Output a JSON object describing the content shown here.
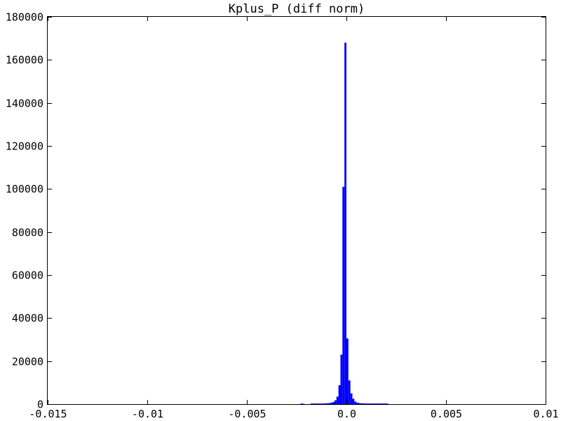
{
  "chart_data": {
    "type": "bar",
    "title": "Kplus_P (diff norm)",
    "xlabel": "",
    "ylabel": "",
    "xlim": [
      -0.015,
      0.01
    ],
    "ylim": [
      0,
      180000
    ],
    "x_ticks": [
      -0.015,
      -0.01,
      -0.005,
      0.0,
      0.005,
      0.01
    ],
    "x_tick_labels": [
      "-0.015",
      "-0.01",
      "-0.005",
      "0.0",
      "0.005",
      "0.01"
    ],
    "y_ticks": [
      0,
      20000,
      40000,
      60000,
      80000,
      100000,
      120000,
      140000,
      160000,
      180000
    ],
    "y_tick_labels": [
      "0",
      "20000",
      "40000",
      "60000",
      "80000",
      "100000",
      "120000",
      "140000",
      "160000",
      "180000"
    ],
    "bar_color": "#0000ff",
    "bin_width": 0.0001,
    "bins": [
      {
        "x0": -0.0023,
        "value": 300
      },
      {
        "x0": -0.0022,
        "value": 200
      },
      {
        "x0": -0.0018,
        "value": 300
      },
      {
        "x0": -0.0017,
        "value": 300
      },
      {
        "x0": -0.0016,
        "value": 300
      },
      {
        "x0": -0.0015,
        "value": 300
      },
      {
        "x0": -0.0014,
        "value": 300
      },
      {
        "x0": -0.0013,
        "value": 300
      },
      {
        "x0": -0.0012,
        "value": 300
      },
      {
        "x0": -0.0011,
        "value": 400
      },
      {
        "x0": -0.001,
        "value": 400
      },
      {
        "x0": -0.0009,
        "value": 500
      },
      {
        "x0": -0.0008,
        "value": 700
      },
      {
        "x0": -0.0007,
        "value": 1000
      },
      {
        "x0": -0.0006,
        "value": 1800
      },
      {
        "x0": -0.0005,
        "value": 3500
      },
      {
        "x0": -0.0004,
        "value": 8800
      },
      {
        "x0": -0.0003,
        "value": 23000
      },
      {
        "x0": -0.0002,
        "value": 101000
      },
      {
        "x0": -0.0001,
        "value": 168000
      },
      {
        "x0": 0.0,
        "value": 30500
      },
      {
        "x0": 0.0001,
        "value": 11000
      },
      {
        "x0": 0.0002,
        "value": 5000
      },
      {
        "x0": 0.0003,
        "value": 2500
      },
      {
        "x0": 0.0004,
        "value": 1200
      },
      {
        "x0": 0.0005,
        "value": 700
      },
      {
        "x0": 0.0006,
        "value": 500
      },
      {
        "x0": 0.0007,
        "value": 400
      },
      {
        "x0": 0.0008,
        "value": 400
      },
      {
        "x0": 0.0009,
        "value": 300
      },
      {
        "x0": 0.001,
        "value": 300
      },
      {
        "x0": 0.0011,
        "value": 300
      },
      {
        "x0": 0.0012,
        "value": 300
      },
      {
        "x0": 0.0013,
        "value": 300
      },
      {
        "x0": 0.0014,
        "value": 300
      },
      {
        "x0": 0.0015,
        "value": 300
      },
      {
        "x0": 0.0016,
        "value": 300
      },
      {
        "x0": 0.0017,
        "value": 300
      },
      {
        "x0": 0.0018,
        "value": 300
      },
      {
        "x0": 0.0019,
        "value": 300
      },
      {
        "x0": 0.002,
        "value": 300
      }
    ]
  }
}
